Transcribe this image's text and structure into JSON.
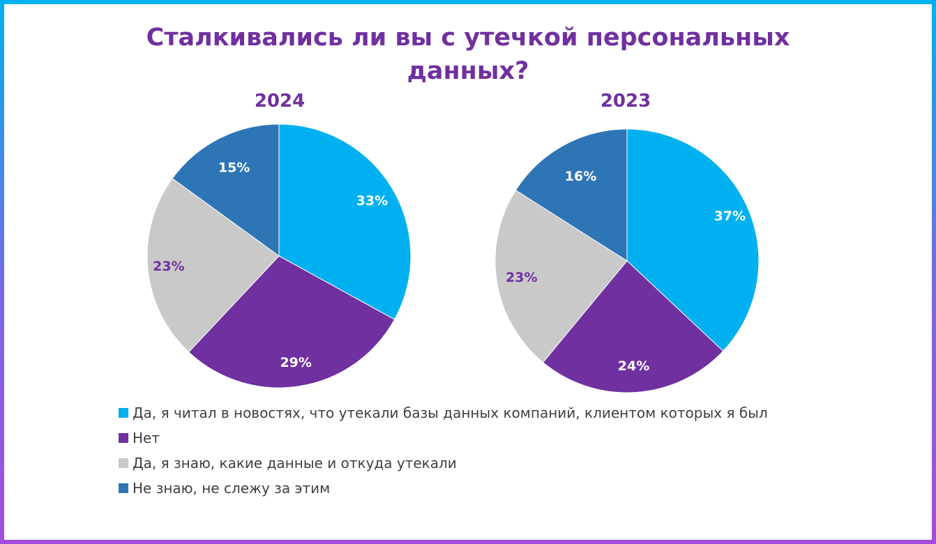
{
  "title_line1": "Сталкивались ли вы с утечкой персональных",
  "title_line2": "данных?",
  "legend": [
    {
      "label": "Да, я читал в новостях, что утекали базы данных компаний, клиентом которых я был",
      "color": "#00b0f0"
    },
    {
      "label": "Нет",
      "color": "#7030a0"
    },
    {
      "label": "Да, я знаю, какие данные и откуда утекали",
      "color": "#c9c9c9"
    },
    {
      "label": "Не знаю, не слежу за этим",
      "color": "#2e75b6"
    }
  ],
  "chart_data": [
    {
      "type": "pie",
      "title": "2024",
      "categories": [
        "Да, я читал в новостях, что утекали базы данных компаний, клиентом которых я был",
        "Нет",
        "Да, я знаю, какие данные и откуда утекали",
        "Не знаю, не слежу за этим"
      ],
      "values": [
        33,
        29,
        23,
        15
      ],
      "labels": [
        "33%",
        "29%",
        "23%",
        "15%"
      ],
      "colors": [
        "#00b0f0",
        "#7030a0",
        "#c9c9c9",
        "#2e75b6"
      ],
      "label_colors": [
        "#ffffff",
        "#ffffff",
        "#7030a0",
        "#ffffff"
      ]
    },
    {
      "type": "pie",
      "title": "2023",
      "categories": [
        "Да, я читал в новостях, что утекали базы данных компаний, клиентом которых я был",
        "Нет",
        "Да, я знаю, какие данные и откуда утекали",
        "Не знаю, не слежу за этим"
      ],
      "values": [
        37,
        24,
        23,
        16
      ],
      "labels": [
        "37%",
        "24%",
        "23%",
        "16%"
      ],
      "colors": [
        "#00b0f0",
        "#7030a0",
        "#c9c9c9",
        "#2e75b6"
      ],
      "label_colors": [
        "#ffffff",
        "#ffffff",
        "#7030a0",
        "#ffffff"
      ]
    }
  ]
}
